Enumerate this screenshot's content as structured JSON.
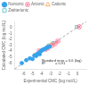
{
  "chart_data": {
    "type": "scatter",
    "xlabel": "Experimental CMC (log mol/L)",
    "ylabel": "Calculated CMC (log mol/L)",
    "xlim": [
      -7,
      1
    ],
    "ylim": [
      -7,
      1
    ],
    "xticks": [
      -6,
      -5,
      -4,
      -3,
      -2,
      -1,
      0
    ],
    "yticks": [
      -6,
      -5,
      -4,
      -3,
      -2,
      -1,
      0
    ],
    "grid": false,
    "legend": "upper left",
    "annotations": [
      {
        "text": "Standard error = 0.6 (log)",
        "x": -4.0,
        "y": -5.3
      },
      {
        "text": "R²          = 0.91",
        "x": -4.0,
        "y": -5.7
      }
    ],
    "series": [
      {
        "type": "line",
        "line_style": "dashed",
        "color": "#777777",
        "x": [
          -7,
          1
        ],
        "y": [
          -7,
          1
        ]
      },
      {
        "name": "Nonionic",
        "marker": "circle_filled",
        "x": [
          -6.2,
          -5.7,
          -5.3,
          -4.8,
          -4.5,
          -4.3,
          -4.1,
          -4.0,
          -3.9,
          -3.8,
          -3.6,
          -3.5,
          -3.4,
          -3.3,
          -3.1,
          -4.6,
          -4.2,
          -5.0
        ],
        "y": [
          -6.0,
          -5.5,
          -5.2,
          -4.7,
          -4.5,
          -4.3,
          -4.0,
          -3.9,
          -3.8,
          -3.7,
          -3.6,
          -3.5,
          -3.4,
          -3.3,
          -3.2,
          -4.8,
          -4.5,
          -5.3
        ]
      },
      {
        "name": "Anionic",
        "marker": "circle_x",
        "x": [
          -3.5,
          -3.2,
          -2.9,
          -2.5,
          -2.2,
          -4.3,
          0.2
        ],
        "y": [
          -3.6,
          -3.3,
          -3.1,
          -2.7,
          -2.3,
          -4.0,
          0.1
        ]
      },
      {
        "name": "Cationic",
        "marker": "triangle",
        "x": [
          -3.3,
          -2.9,
          -4.7
        ],
        "y": [
          -3.2,
          -2.8,
          -4.5
        ]
      },
      {
        "name": "Zwitterionic",
        "marker": "square",
        "x": [
          -3.2,
          -0.1,
          -2.7
        ],
        "y": [
          -3.0,
          0.1,
          -2.6
        ]
      }
    ]
  }
}
